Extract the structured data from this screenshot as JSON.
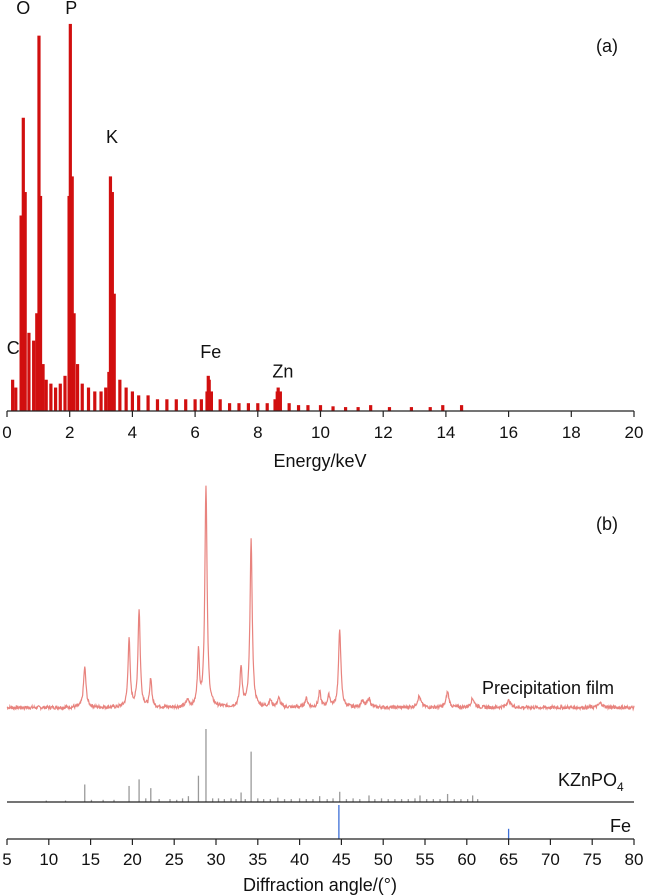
{
  "chart_data": [
    {
      "panel": "(a)",
      "type": "bar",
      "xlabel": "Energy/keV",
      "ylabel": "",
      "xlim": [
        0,
        20
      ],
      "ylim": [
        0,
        100
      ],
      "xticks": [
        0,
        2,
        4,
        6,
        8,
        10,
        12,
        14,
        16,
        18,
        20
      ],
      "grid": false,
      "colors": {
        "bars": "#d10f0f"
      },
      "element_labels": [
        {
          "text": "C",
          "x": 0.2,
          "y": 13
        },
        {
          "text": "O",
          "x": 0.52,
          "y": 100
        },
        {
          "text": "P",
          "x": 2.05,
          "y": 100
        },
        {
          "text": "K",
          "x": 3.35,
          "y": 67
        },
        {
          "text": "Fe",
          "x": 6.5,
          "y": 12
        },
        {
          "text": "Zn",
          "x": 8.8,
          "y": 7
        }
      ],
      "peaks": [
        {
          "x": 0.18,
          "y": 8
        },
        {
          "x": 0.28,
          "y": 6
        },
        {
          "x": 0.45,
          "y": 50
        },
        {
          "x": 0.52,
          "y": 75
        },
        {
          "x": 0.58,
          "y": 56
        },
        {
          "x": 0.7,
          "y": 20
        },
        {
          "x": 0.85,
          "y": 18
        },
        {
          "x": 0.95,
          "y": 25
        },
        {
          "x": 1.02,
          "y": 96
        },
        {
          "x": 1.07,
          "y": 55
        },
        {
          "x": 1.15,
          "y": 12
        },
        {
          "x": 1.25,
          "y": 8
        },
        {
          "x": 1.4,
          "y": 7
        },
        {
          "x": 1.55,
          "y": 6
        },
        {
          "x": 1.7,
          "y": 7
        },
        {
          "x": 1.85,
          "y": 9
        },
        {
          "x": 1.98,
          "y": 55
        },
        {
          "x": 2.02,
          "y": 99
        },
        {
          "x": 2.08,
          "y": 60
        },
        {
          "x": 2.14,
          "y": 25
        },
        {
          "x": 2.25,
          "y": 12
        },
        {
          "x": 2.4,
          "y": 7
        },
        {
          "x": 2.6,
          "y": 6
        },
        {
          "x": 2.8,
          "y": 5
        },
        {
          "x": 3.0,
          "y": 5
        },
        {
          "x": 3.15,
          "y": 6
        },
        {
          "x": 3.25,
          "y": 10
        },
        {
          "x": 3.3,
          "y": 60
        },
        {
          "x": 3.36,
          "y": 56
        },
        {
          "x": 3.42,
          "y": 30
        },
        {
          "x": 3.6,
          "y": 8
        },
        {
          "x": 3.8,
          "y": 6
        },
        {
          "x": 4.0,
          "y": 5
        },
        {
          "x": 4.2,
          "y": 4
        },
        {
          "x": 4.5,
          "y": 4
        },
        {
          "x": 4.8,
          "y": 3
        },
        {
          "x": 5.1,
          "y": 3
        },
        {
          "x": 5.4,
          "y": 3
        },
        {
          "x": 5.7,
          "y": 3
        },
        {
          "x": 6.0,
          "y": 3
        },
        {
          "x": 6.2,
          "y": 3
        },
        {
          "x": 6.38,
          "y": 5
        },
        {
          "x": 6.42,
          "y": 9
        },
        {
          "x": 6.45,
          "y": 8
        },
        {
          "x": 6.52,
          "y": 5
        },
        {
          "x": 6.8,
          "y": 3
        },
        {
          "x": 7.1,
          "y": 2
        },
        {
          "x": 7.4,
          "y": 2
        },
        {
          "x": 7.7,
          "y": 2
        },
        {
          "x": 8.0,
          "y": 2
        },
        {
          "x": 8.3,
          "y": 2
        },
        {
          "x": 8.55,
          "y": 3
        },
        {
          "x": 8.62,
          "y": 5
        },
        {
          "x": 8.65,
          "y": 6
        },
        {
          "x": 8.72,
          "y": 5
        },
        {
          "x": 9.0,
          "y": 2
        },
        {
          "x": 9.3,
          "y": 1.5
        },
        {
          "x": 9.6,
          "y": 1.5
        },
        {
          "x": 10.0,
          "y": 1.5
        },
        {
          "x": 10.4,
          "y": 1.2
        },
        {
          "x": 10.8,
          "y": 1
        },
        {
          "x": 11.2,
          "y": 1
        },
        {
          "x": 11.6,
          "y": 1.5
        },
        {
          "x": 12.2,
          "y": 1
        },
        {
          "x": 12.9,
          "y": 1
        },
        {
          "x": 13.5,
          "y": 1
        },
        {
          "x": 13.9,
          "y": 1.5
        },
        {
          "x": 14.5,
          "y": 1.5
        }
      ]
    },
    {
      "panel": "(b)",
      "type": "line",
      "xlabel": "Diffraction angle/(°)",
      "ylabel": "",
      "xlim": [
        5,
        80
      ],
      "xticks": [
        5,
        10,
        15,
        20,
        25,
        30,
        35,
        40,
        45,
        50,
        55,
        60,
        65,
        70,
        75,
        80
      ],
      "grid": false,
      "series": [
        {
          "name": "Precipitation film",
          "type": "line",
          "color": "#e8837e",
          "baseline": 2,
          "noise": 0.8,
          "peaks": [
            {
              "x": 14.3,
              "h": 18,
              "w": 0.18
            },
            {
              "x": 19.6,
              "h": 31,
              "w": 0.15
            },
            {
              "x": 20.8,
              "h": 44,
              "w": 0.16
            },
            {
              "x": 22.2,
              "h": 13,
              "w": 0.14
            },
            {
              "x": 26.6,
              "h": 3,
              "w": 0.2
            },
            {
              "x": 27.9,
              "h": 24,
              "w": 0.14
            },
            {
              "x": 28.8,
              "h": 100,
              "w": 0.16
            },
            {
              "x": 33.0,
              "h": 18,
              "w": 0.16
            },
            {
              "x": 34.2,
              "h": 75,
              "w": 0.16
            },
            {
              "x": 36.5,
              "h": 3,
              "w": 0.2
            },
            {
              "x": 37.5,
              "h": 4,
              "w": 0.2
            },
            {
              "x": 40.8,
              "h": 4,
              "w": 0.2
            },
            {
              "x": 42.4,
              "h": 7,
              "w": 0.16
            },
            {
              "x": 43.5,
              "h": 5,
              "w": 0.2
            },
            {
              "x": 44.8,
              "h": 35,
              "w": 0.17
            },
            {
              "x": 47.5,
              "h": 3,
              "w": 0.2
            },
            {
              "x": 48.3,
              "h": 4,
              "w": 0.2
            },
            {
              "x": 54.3,
              "h": 5,
              "w": 0.25
            },
            {
              "x": 57.7,
              "h": 7,
              "w": 0.2
            },
            {
              "x": 60.7,
              "h": 4,
              "w": 0.25
            },
            {
              "x": 65.0,
              "h": 3,
              "w": 0.3
            },
            {
              "x": 76.0,
              "h": 2,
              "w": 0.3
            }
          ]
        },
        {
          "name": "KZnPO4",
          "type": "sticks",
          "color": "#9a9a9a",
          "sticks": [
            {
              "x": 9.7,
              "h": 2
            },
            {
              "x": 12.0,
              "h": 2
            },
            {
              "x": 14.3,
              "h": 24
            },
            {
              "x": 15.1,
              "h": 3
            },
            {
              "x": 16.5,
              "h": 3
            },
            {
              "x": 17.8,
              "h": 3
            },
            {
              "x": 19.6,
              "h": 22
            },
            {
              "x": 20.8,
              "h": 31
            },
            {
              "x": 21.6,
              "h": 5
            },
            {
              "x": 22.2,
              "h": 19
            },
            {
              "x": 23.2,
              "h": 4
            },
            {
              "x": 24.5,
              "h": 4
            },
            {
              "x": 25.3,
              "h": 3
            },
            {
              "x": 26.0,
              "h": 5
            },
            {
              "x": 26.7,
              "h": 8
            },
            {
              "x": 27.9,
              "h": 36
            },
            {
              "x": 28.8,
              "h": 100
            },
            {
              "x": 29.6,
              "h": 5
            },
            {
              "x": 30.3,
              "h": 5
            },
            {
              "x": 31.0,
              "h": 4
            },
            {
              "x": 31.8,
              "h": 5
            },
            {
              "x": 32.4,
              "h": 4
            },
            {
              "x": 33.0,
              "h": 13
            },
            {
              "x": 33.5,
              "h": 4
            },
            {
              "x": 34.2,
              "h": 69
            },
            {
              "x": 35.0,
              "h": 5
            },
            {
              "x": 35.7,
              "h": 4
            },
            {
              "x": 36.5,
              "h": 4
            },
            {
              "x": 37.4,
              "h": 6
            },
            {
              "x": 38.2,
              "h": 4
            },
            {
              "x": 39.0,
              "h": 4
            },
            {
              "x": 40.0,
              "h": 5
            },
            {
              "x": 40.8,
              "h": 4
            },
            {
              "x": 41.6,
              "h": 4
            },
            {
              "x": 42.4,
              "h": 8
            },
            {
              "x": 43.3,
              "h": 4
            },
            {
              "x": 44.0,
              "h": 5
            },
            {
              "x": 44.8,
              "h": 14
            },
            {
              "x": 45.6,
              "h": 4
            },
            {
              "x": 46.4,
              "h": 5
            },
            {
              "x": 47.2,
              "h": 4
            },
            {
              "x": 48.3,
              "h": 9
            },
            {
              "x": 49.0,
              "h": 4
            },
            {
              "x": 49.8,
              "h": 5
            },
            {
              "x": 50.6,
              "h": 4
            },
            {
              "x": 51.4,
              "h": 4
            },
            {
              "x": 52.2,
              "h": 4
            },
            {
              "x": 53.0,
              "h": 4
            },
            {
              "x": 53.8,
              "h": 5
            },
            {
              "x": 54.4,
              "h": 9
            },
            {
              "x": 55.2,
              "h": 4
            },
            {
              "x": 56.0,
              "h": 4
            },
            {
              "x": 56.8,
              "h": 4
            },
            {
              "x": 57.7,
              "h": 11
            },
            {
              "x": 58.5,
              "h": 4
            },
            {
              "x": 59.3,
              "h": 4
            },
            {
              "x": 60.1,
              "h": 4
            },
            {
              "x": 60.7,
              "h": 9
            },
            {
              "x": 61.3,
              "h": 4
            }
          ]
        },
        {
          "name": "Fe",
          "type": "sticks",
          "color": "#3d6fd6",
          "sticks": [
            {
              "x": 44.7,
              "h": 100
            },
            {
              "x": 65.0,
              "h": 30
            }
          ]
        }
      ]
    }
  ],
  "labels": {
    "panel_a": "(a)",
    "panel_b": "(b)",
    "series_film": "Precipitation film",
    "series_kznpo4_main": "KZnPO",
    "series_kznpo4_sub": "4",
    "series_fe": "Fe"
  }
}
